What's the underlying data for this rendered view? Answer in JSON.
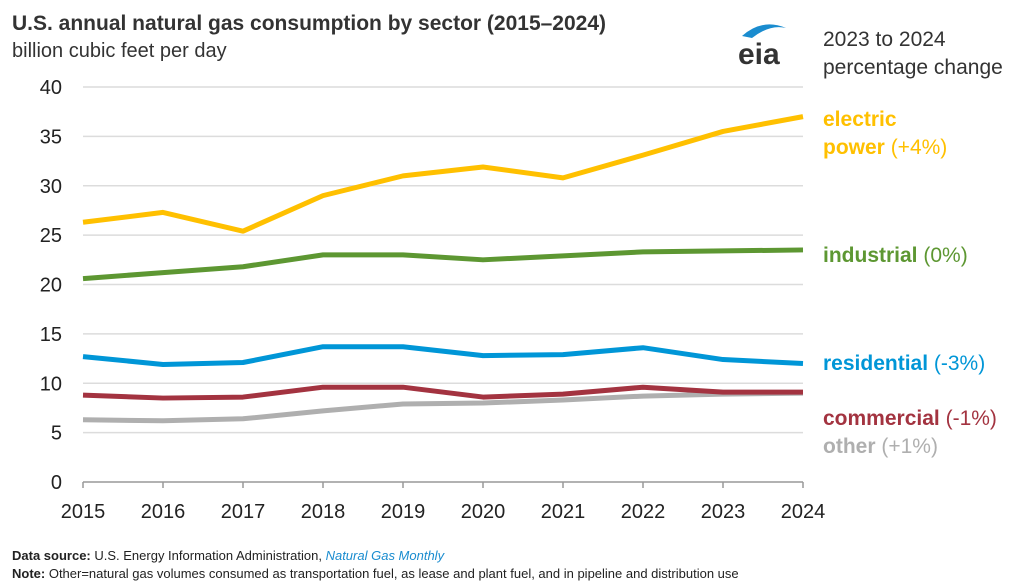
{
  "chart_data": {
    "type": "line",
    "title": "U.S. annual natural gas consumption by sector (2015–2024)",
    "subtitle": "billion cubic feet per day",
    "x": [
      2015,
      2016,
      2017,
      2018,
      2019,
      2020,
      2021,
      2022,
      2023,
      2024
    ],
    "ylim": [
      0,
      40
    ],
    "yticks": [
      0,
      5,
      10,
      15,
      20,
      25,
      30,
      35,
      40
    ],
    "grid": true,
    "legend_header": "2023 to 2024\npercentage change",
    "series": [
      {
        "name": "electric power",
        "label_line1": "electric",
        "label_line2": "power",
        "pct": "(+4%)",
        "color": "#ffc000",
        "values": [
          26.3,
          27.3,
          25.4,
          29.0,
          31.0,
          31.9,
          30.8,
          33.1,
          35.5,
          37.0
        ]
      },
      {
        "name": "industrial",
        "pct": "(0%)",
        "color": "#5d9732",
        "values": [
          20.6,
          21.2,
          21.8,
          23.0,
          23.0,
          22.5,
          22.9,
          23.3,
          23.4,
          23.5
        ]
      },
      {
        "name": "residential",
        "pct": "(-3%)",
        "color": "#0096d7",
        "values": [
          12.7,
          11.9,
          12.1,
          13.7,
          13.7,
          12.8,
          12.9,
          13.6,
          12.4,
          12.0
        ]
      },
      {
        "name": "commercial",
        "pct": "(-1%)",
        "color": "#a33340",
        "values": [
          8.8,
          8.5,
          8.6,
          9.6,
          9.6,
          8.6,
          8.9,
          9.6,
          9.1,
          9.1
        ]
      },
      {
        "name": "other",
        "pct": "(+1%)",
        "color": "#afafaf",
        "values": [
          6.3,
          6.2,
          6.4,
          7.2,
          7.9,
          8.0,
          8.3,
          8.7,
          8.9,
          9.0
        ]
      }
    ]
  },
  "logo": {
    "text": "eia"
  },
  "footer": {
    "source_label": "Data source:",
    "source_text": " U.S. Energy Information Administration, ",
    "source_link": "Natural Gas Monthly",
    "note_label": "Note:",
    "note_text": " Other=natural gas volumes consumed as transportation fuel, as lease and plant fuel, and in pipeline and distribution use"
  }
}
